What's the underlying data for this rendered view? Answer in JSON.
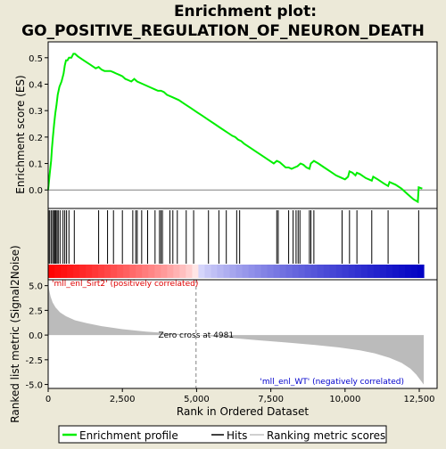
{
  "chart_data": {
    "type": "line",
    "title_line1": "Enrichment plot:",
    "title_line2": "GO_POSITIVE_REGULATION_OF_NEURON_DEATH",
    "panels": {
      "es": {
        "ylabel": "Enrichment score (ES)",
        "ylim": [
          -0.07,
          0.56
        ],
        "yticks": [
          0.0,
          0.1,
          0.2,
          0.3,
          0.4,
          0.5
        ],
        "ytick_labels": [
          "0.0",
          "0.1",
          "0.2",
          "0.3",
          "0.4",
          "0.5"
        ],
        "series": [
          {
            "color": "#00ee00",
            "x": [
              0,
              50,
              100,
              130,
              160,
              200,
              240,
              280,
              320,
              380,
              450,
              520,
              560,
              600,
              650,
              700,
              780,
              850,
              900,
              1000,
              1200,
              1400,
              1600,
              1700,
              1800,
              1900,
              2000,
              2100,
              2200,
              2300,
              2400,
              2500,
              2600,
              2700,
              2800,
              2900,
              3000,
              3200,
              3400,
              3600,
              3700,
              3800,
              3900,
              4000,
              4200,
              4400,
              4600,
              4800,
              5000,
              5200,
              5400,
              5600,
              5800,
              6000,
              6200,
              6300,
              6400,
              6500,
              6600,
              6800,
              7000,
              7200,
              7400,
              7600,
              7700,
              7800,
              7900,
              8000,
              8100,
              8200,
              8300,
              8400,
              8500,
              8600,
              8700,
              8800,
              8850,
              8950,
              9100,
              9300,
              9500,
              9700,
              9900,
              10000,
              10100,
              10150,
              10250,
              10350,
              10400,
              10500,
              10700,
              10900,
              10950,
              11100,
              11300,
              11450,
              11500,
              11700,
              11900,
              12100,
              12300,
              12450,
              12480,
              12600
            ],
            "y": [
              0.0,
              0.06,
              0.11,
              0.16,
              0.2,
              0.25,
              0.29,
              0.32,
              0.36,
              0.39,
              0.41,
              0.44,
              0.47,
              0.49,
              0.49,
              0.5,
              0.5,
              0.515,
              0.515,
              0.505,
              0.49,
              0.475,
              0.46,
              0.465,
              0.455,
              0.45,
              0.45,
              0.45,
              0.445,
              0.44,
              0.435,
              0.43,
              0.42,
              0.415,
              0.41,
              0.42,
              0.41,
              0.4,
              0.39,
              0.38,
              0.375,
              0.375,
              0.37,
              0.36,
              0.35,
              0.34,
              0.325,
              0.31,
              0.295,
              0.28,
              0.265,
              0.25,
              0.235,
              0.22,
              0.205,
              0.2,
              0.19,
              0.185,
              0.175,
              0.16,
              0.145,
              0.13,
              0.115,
              0.1,
              0.11,
              0.105,
              0.095,
              0.085,
              0.085,
              0.08,
              0.085,
              0.09,
              0.1,
              0.095,
              0.085,
              0.08,
              0.1,
              0.11,
              0.1,
              0.085,
              0.07,
              0.055,
              0.045,
              0.04,
              0.05,
              0.07,
              0.065,
              0.055,
              0.065,
              0.06,
              0.045,
              0.035,
              0.05,
              0.04,
              0.025,
              0.015,
              0.03,
              0.02,
              0.005,
              -0.015,
              -0.035,
              -0.045,
              0.01,
              0.005
            ]
          }
        ]
      },
      "hits": {
        "positions": [
          10,
          50,
          100,
          150,
          190,
          230,
          260,
          300,
          340,
          400,
          500,
          560,
          620,
          700,
          880,
          1700,
          2000,
          2200,
          2500,
          2850,
          2950,
          3000,
          3150,
          3350,
          3600,
          3750,
          3800,
          3850,
          4100,
          4200,
          4350,
          4650,
          4900,
          5400,
          5750,
          6000,
          6350,
          6450,
          7700,
          7750,
          8100,
          8250,
          8350,
          8420,
          8480,
          8800,
          8850,
          8950,
          9900,
          10150,
          10400,
          10900,
          11450,
          12480
        ]
      },
      "metric": {
        "ylabel": "Ranked list metric (Signal2Noise)",
        "ylim": [
          -5.0,
          5.0
        ],
        "yticks": [
          -5.0,
          -2.5,
          0.0,
          2.5,
          5.0
        ],
        "ytick_labels": [
          "-5.0",
          "-2.5",
          "0.0",
          "2.5",
          "5.0"
        ],
        "profile": {
          "x": [
            0,
            30,
            80,
            150,
            250,
            400,
            600,
            900,
            1300,
            1800,
            2500,
            3300,
            4200,
            4981,
            5800,
            7000,
            8000,
            9000,
            9800,
            10500,
            11000,
            11500,
            11900,
            12200,
            12400,
            12550,
            12650
          ],
          "y": [
            5.2,
            4.6,
            3.9,
            3.3,
            2.8,
            2.3,
            1.9,
            1.5,
            1.2,
            0.9,
            0.6,
            0.35,
            0.15,
            0.0,
            -0.2,
            -0.5,
            -0.75,
            -1.0,
            -1.25,
            -1.55,
            -1.85,
            -2.3,
            -2.8,
            -3.4,
            -4.0,
            -4.6,
            -5.0
          ]
        },
        "zero_cross": 4981,
        "zero_cross_label": "Zero cross at 4981",
        "pos_label": "'mll_enl_Sirt2' (positively correlated)",
        "neg_label": "'mll_enl_WT' (negatively correlated)"
      }
    },
    "xlabel": "Rank in Ordered Dataset",
    "xlim": [
      0,
      13100
    ],
    "xticks": [
      0,
      2500,
      5000,
      7500,
      10000,
      12500
    ],
    "xtick_labels": [
      "0",
      "2,500",
      "5,000",
      "7,500",
      "10,000",
      "12,500"
    ],
    "n_genes": 12650,
    "legend": {
      "placement": "bottom",
      "entries": [
        {
          "label": "Enrichment profile",
          "color": "#00ee00"
        },
        {
          "label": "Hits",
          "color": "#000000"
        },
        {
          "label": "Ranking metric scores",
          "color": "#c0c0c0"
        }
      ]
    },
    "colors": {
      "pos": "#ff0000",
      "neg": "#0000cc",
      "pos_label": "#dd0000",
      "neg_label": "#0000cc",
      "metric_fill": "#bbbbbb"
    }
  }
}
